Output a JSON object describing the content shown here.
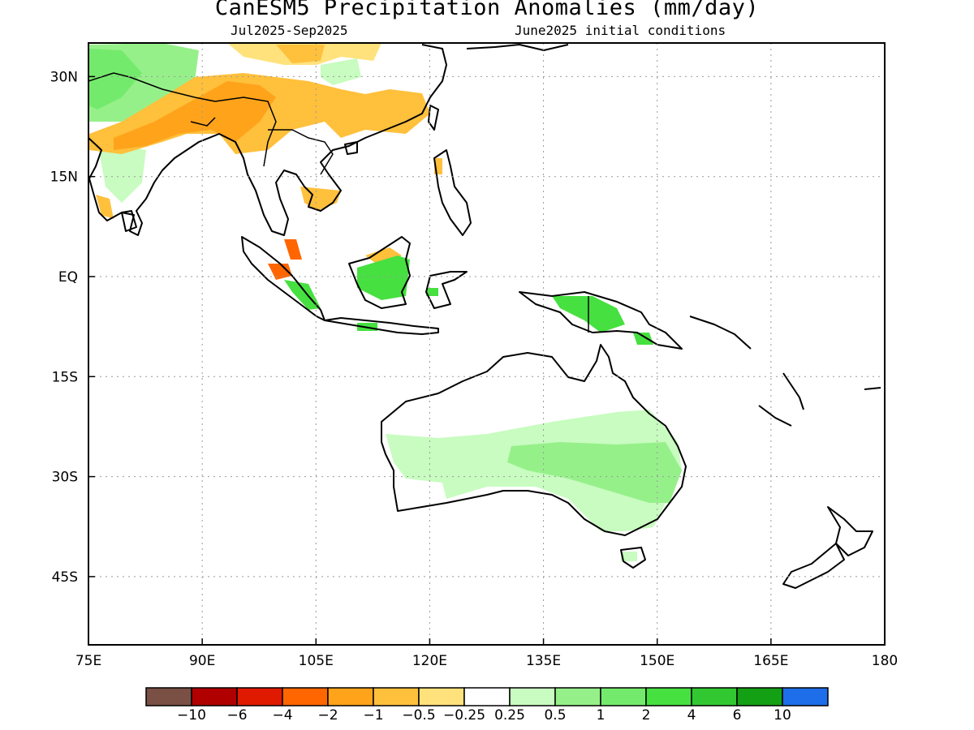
{
  "title": "CanESM5 Precipitation Anomalies (mm/day)",
  "subtitle_left": "Jul2025-Sep2025",
  "subtitle_right": "June2025 initial conditions",
  "axes": {
    "lon_ticks": [
      "75E",
      "90E",
      "105E",
      "120E",
      "135E",
      "150E",
      "165E",
      "180"
    ],
    "lat_ticks": [
      "30N",
      "15N",
      "EQ",
      "15S",
      "30S",
      "45S"
    ]
  },
  "colorbar": {
    "colors": [
      "#7a5044",
      "#b00000",
      "#e01a00",
      "#ff6600",
      "#ffa31a",
      "#ffc03c",
      "#ffe27c",
      "#ffffff",
      "#c8fcc0",
      "#96f08a",
      "#74ea6c",
      "#46e040",
      "#32c832",
      "#14a014",
      "#1e6eea"
    ],
    "labels": [
      "-10",
      "-6",
      "-4",
      "-2",
      "-1",
      "-0.5",
      "-0.25",
      "0.25",
      "0.5",
      "1",
      "2",
      "4",
      "6",
      "10"
    ]
  },
  "map_extent": {
    "lon": [
      75,
      180
    ],
    "lat": [
      -55,
      35
    ]
  }
}
